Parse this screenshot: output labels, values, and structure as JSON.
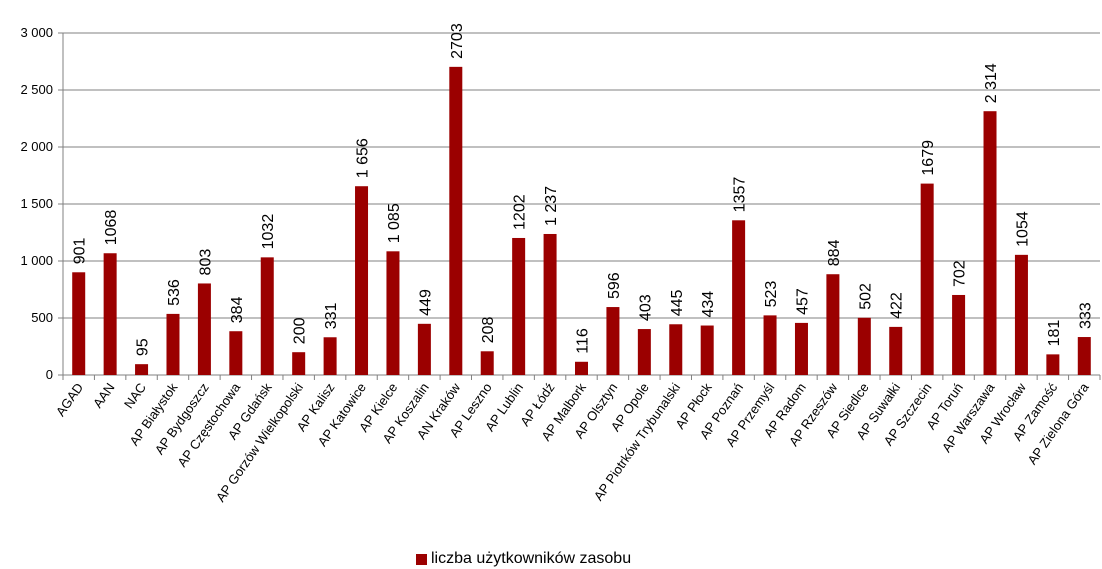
{
  "chart_data": {
    "type": "bar",
    "categories": [
      "AGAD",
      "AAN",
      "NAC",
      "AP Białystok",
      "AP Bydgoszcz",
      "AP Częstochowa",
      "AP Gdańsk",
      "AP Gorzów Wielkopolski",
      "AP Kalisz",
      "AP Katowice",
      "AP Kielce",
      "AP Koszalin",
      "AN Kraków",
      "AP Leszno",
      "AP Lublin",
      "AP Łódź",
      "AP Malbork",
      "AP Olsztyn",
      "AP Opole",
      "AP Piotrków Trybunalski",
      "AP Płock",
      "AP Poznań",
      "AP Przemyśl",
      "AP Radom",
      "AP Rzeszów",
      "AP Siedlce",
      "AP Suwałki",
      "AP Szczecin",
      "AP Toruń",
      "AP Warszawa",
      "AP Wrocław",
      "AP Zamość",
      "AP Zielona Góra"
    ],
    "series": [
      {
        "name": "liczba użytkowników zasobu",
        "values": [
          901,
          1068,
          95,
          536,
          803,
          384,
          1032,
          200,
          331,
          1656,
          1085,
          449,
          2703,
          208,
          1202,
          1237,
          116,
          596,
          403,
          445,
          434,
          1357,
          523,
          457,
          884,
          502,
          422,
          1679,
          702,
          2314,
          1054,
          181,
          333
        ],
        "labels": [
          "901",
          "1068",
          "95",
          "536",
          "803",
          "384",
          "1032",
          "200",
          "331",
          "1 656",
          "1 085",
          "449",
          "2703",
          "208",
          "1202",
          "1 237",
          "116",
          "596",
          "403",
          "445",
          "434",
          "1357",
          "523",
          "457",
          "884",
          "502",
          "422",
          "1679",
          "702",
          "2 314",
          "1054",
          "181",
          "333"
        ]
      }
    ],
    "ylim": [
      0,
      3000
    ],
    "yticks": [
      0,
      500,
      1000,
      1500,
      2000,
      2500,
      3000
    ],
    "ytick_labels": [
      "0",
      "500",
      "1 000",
      "1 500",
      "2 000",
      "2 500",
      "3 000"
    ],
    "grid": true,
    "legend_position": "bottom",
    "colors": {
      "bar": "#9B0000",
      "grid": "#808080",
      "axis": "#808080"
    }
  }
}
